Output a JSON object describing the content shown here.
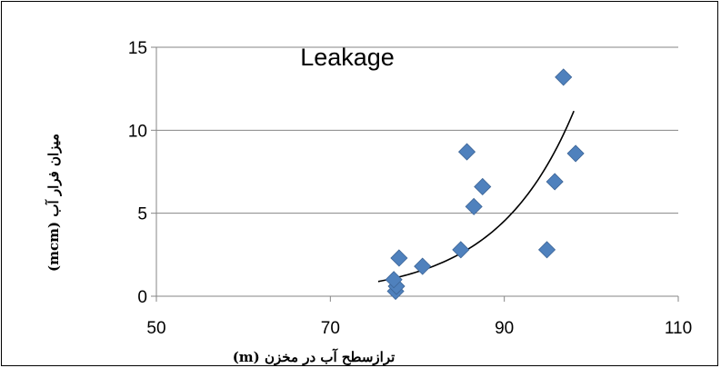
{
  "chart_data": {
    "type": "scatter",
    "title": "Leakage",
    "xlabel": "ترازسطح آب در مخزن (m)",
    "ylabel": "میزان فرار آب (mcm)",
    "xlim": [
      50,
      110
    ],
    "ylim": [
      0,
      15
    ],
    "x_ticks": [
      "50",
      "70",
      "90",
      "110"
    ],
    "y_ticks": [
      "0",
      "5",
      "10",
      "15"
    ],
    "grid": "horizontal",
    "marker_color": "#4f81bd",
    "trendline": {
      "type": "exponential",
      "x_start": 75.5,
      "x_end": 98,
      "color": "#000000"
    },
    "series": [
      {
        "points": [
          {
            "x": 77.5,
            "y": 0.3
          },
          {
            "x": 77.6,
            "y": 0.6
          },
          {
            "x": 77.3,
            "y": 1.0
          },
          {
            "x": 77.9,
            "y": 2.3
          },
          {
            "x": 80.6,
            "y": 1.8
          },
          {
            "x": 85.0,
            "y": 2.8
          },
          {
            "x": 85.7,
            "y": 8.7
          },
          {
            "x": 86.5,
            "y": 5.4
          },
          {
            "x": 87.5,
            "y": 6.6
          },
          {
            "x": 94.9,
            "y": 2.8
          },
          {
            "x": 95.8,
            "y": 6.9
          },
          {
            "x": 96.8,
            "y": 13.2
          },
          {
            "x": 98.2,
            "y": 8.6
          }
        ]
      }
    ]
  }
}
